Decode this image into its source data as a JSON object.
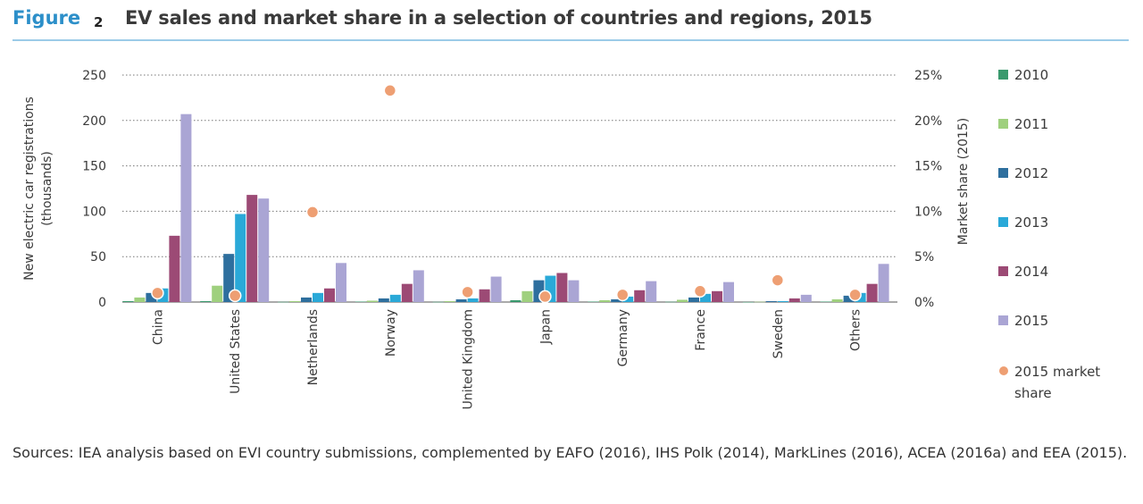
{
  "header": {
    "figure_word": "Figure",
    "figure_number": "2",
    "title": "EV sales and market share in a selection of countries and regions, 2015"
  },
  "sources": "Sources: IEA analysis based on EVI country submissions, complemented by EAFO (2016), IHS Polk (2014), MarkLines (2016), ACEA (2016a) and EEA (2015).",
  "colors": {
    "2010": "#3a9a6e",
    "2011": "#9fd07e",
    "2012": "#2e6f9e",
    "2013": "#2aa9d8",
    "2014": "#9c4a75",
    "2015": "#aaa5d4",
    "market_share": "#ee9f73"
  },
  "chart_data": {
    "type": "bar",
    "title": "EV sales and market share in a selection of countries and regions, 2015",
    "categories": [
      "China",
      "United States",
      "Netherlands",
      "Norway",
      "United Kingdom",
      "Japan",
      "Germany",
      "France",
      "Sweden",
      "Others"
    ],
    "ylabel": [
      "New electric car registrations",
      "(thousands)"
    ],
    "y2label": "Market share (2015)",
    "ylim": [
      0,
      250
    ],
    "yticks": [
      0,
      50,
      100,
      150,
      200,
      250
    ],
    "y2lim": [
      0,
      25
    ],
    "y2ticks": [
      "0%",
      "5%",
      "10%",
      "15%",
      "20%",
      "25%"
    ],
    "grid": true,
    "legend_position": "right",
    "series": [
      {
        "name": "2010",
        "values": [
          1,
          1,
          0.2,
          0.5,
          0.2,
          2,
          0.5,
          0.3,
          0.1,
          0.5
        ]
      },
      {
        "name": "2011",
        "values": [
          5,
          18,
          1,
          1.5,
          1,
          12,
          2,
          2.5,
          0.3,
          3
        ]
      },
      {
        "name": "2012",
        "values": [
          10,
          53,
          5,
          4,
          3,
          24,
          3,
          5,
          1,
          7
        ]
      },
      {
        "name": "2013",
        "values": [
          15,
          97,
          10,
          8,
          4,
          29,
          6,
          9,
          1,
          10
        ]
      },
      {
        "name": "2014",
        "values": [
          73,
          118,
          15,
          20,
          14,
          32,
          13,
          12,
          4,
          20
        ]
      },
      {
        "name": "2015",
        "values": [
          207,
          114,
          43,
          35,
          28,
          24,
          23,
          22,
          8,
          42
        ]
      },
      {
        "name": "2015 market share",
        "type": "scatter",
        "axis": "right",
        "values": [
          1.0,
          0.7,
          9.9,
          23.3,
          1.1,
          0.6,
          0.8,
          1.2,
          2.4,
          0.8
        ]
      }
    ]
  }
}
